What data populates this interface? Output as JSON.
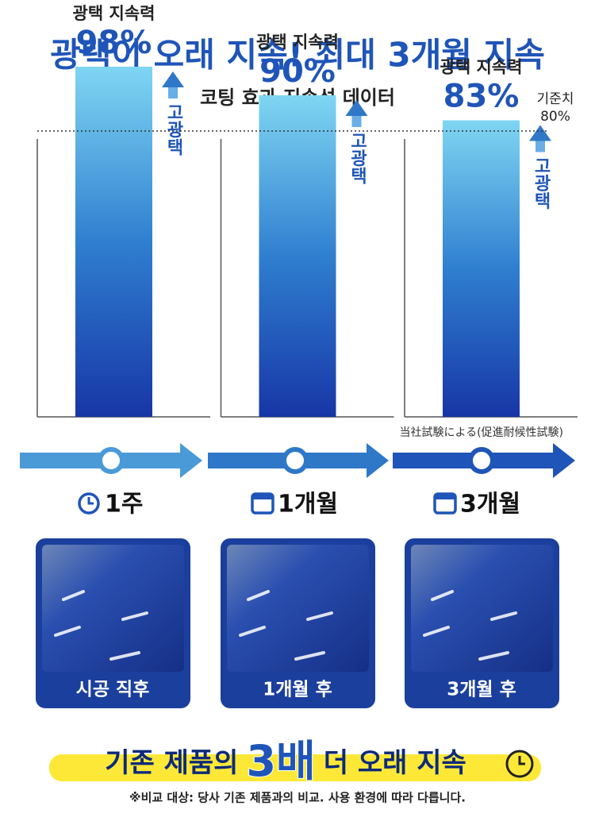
{
  "header": {
    "title": "광택이 오래 지속! 최대 3개월 지속",
    "subtitle": "코팅 효과 지속성 데이터"
  },
  "chart_data": {
    "type": "bar",
    "categories": [
      "광택 지속력",
      "광택 지속력",
      "광택 지속력"
    ],
    "values": [
      98,
      90,
      83
    ],
    "value_labels": [
      "98%",
      "90%",
      "83%"
    ],
    "color": "#1f55b8",
    "ylim": [
      0,
      110
    ],
    "reference": {
      "value": 80,
      "label": "기준치",
      "value_label": "80%"
    },
    "arrow_label": "고광택",
    "source_note": "当社試験による(促進耐候性試験)"
  },
  "timeline": {
    "labels": [
      "1주",
      "1개월",
      "3개월"
    ]
  },
  "photos": {
    "captions": [
      "시공 직후",
      "1개월 후",
      "3개월 후"
    ]
  },
  "footer": {
    "headline_before": "기존 제품의",
    "headline_emphasis": "3배",
    "headline_after": "더 오래 지속",
    "note": "※비교 대상: 당사 기존 제품과의 비교. 사용 환경에 따라 다릅니다."
  }
}
